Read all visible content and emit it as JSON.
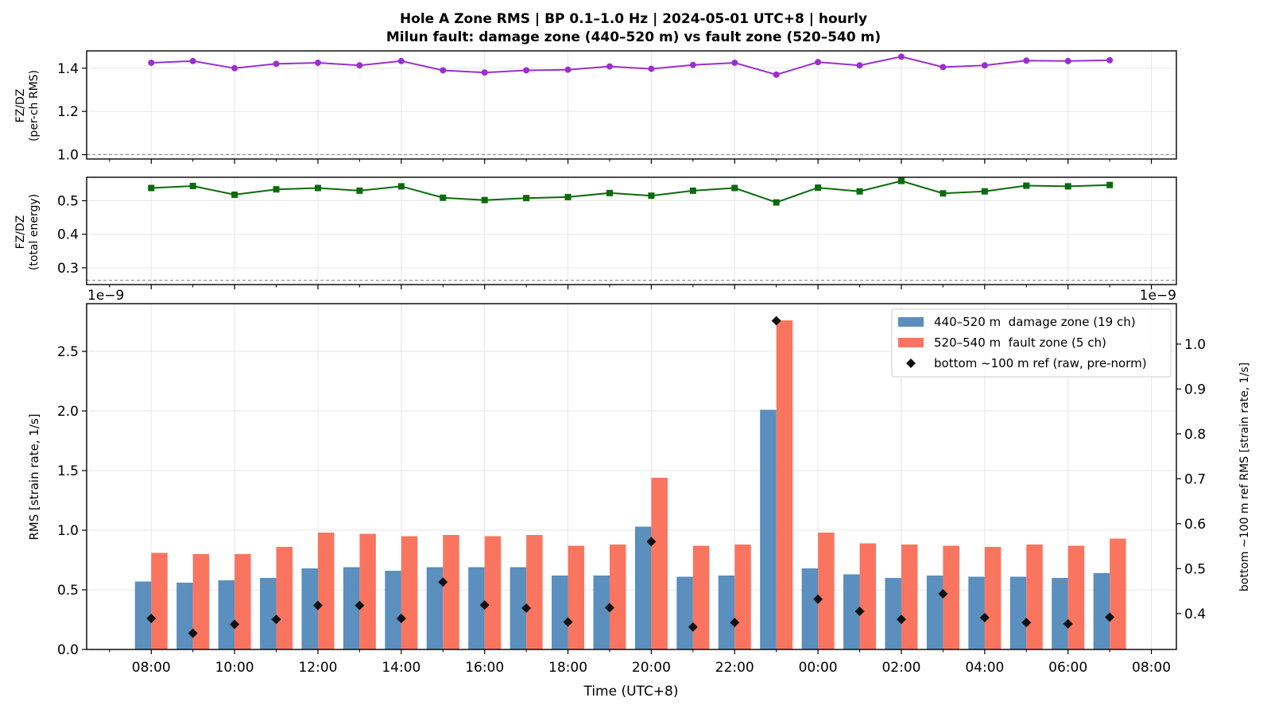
{
  "title_line1": "Hole A Zone RMS  |  BP 0.1–1.0 Hz  |  2024-05-01 UTC+8  |  hourly",
  "title_line2": "Milun fault: damage zone (440–520 m) vs fault zone (520–540 m)",
  "colors": {
    "damage": "#5a8fbe",
    "fault": "#fa7560",
    "ref": "#111111",
    "ratio_rms": "#9a2fd0",
    "ratio_energy": "#0b6b0b"
  },
  "chart_data": [
    {
      "type": "line",
      "panel": "top",
      "ylabel_line1": "FZ/DZ",
      "ylabel_line2": "(per-ch RMS)",
      "yticks": [
        "1.0",
        "1.2",
        "1.4"
      ],
      "ylim": [
        0.98,
        1.48
      ],
      "reference_line": 1.0,
      "x_hours": [
        8,
        9,
        10,
        11,
        12,
        13,
        14,
        15,
        16,
        17,
        18,
        19,
        20,
        21,
        22,
        23,
        24,
        25,
        26,
        27,
        28,
        29,
        30,
        31
      ],
      "values": [
        1.425,
        1.433,
        1.4,
        1.42,
        1.425,
        1.413,
        1.433,
        1.39,
        1.38,
        1.39,
        1.393,
        1.408,
        1.397,
        1.415,
        1.425,
        1.37,
        1.428,
        1.413,
        1.453,
        1.405,
        1.413,
        1.435,
        1.433,
        1.437
      ]
    },
    {
      "type": "line",
      "panel": "middle",
      "ylabel_line1": "FZ/DZ",
      "ylabel_line2": "(total energy)",
      "yticks": [
        "0.3",
        "0.4",
        "0.5"
      ],
      "ylim": [
        0.25,
        0.57
      ],
      "reference_line": 0.263,
      "x_hours": [
        8,
        9,
        10,
        11,
        12,
        13,
        14,
        15,
        16,
        17,
        18,
        19,
        20,
        21,
        22,
        23,
        24,
        25,
        26,
        27,
        28,
        29,
        30,
        31
      ],
      "values": [
        0.538,
        0.544,
        0.518,
        0.534,
        0.538,
        0.53,
        0.543,
        0.509,
        0.502,
        0.508,
        0.511,
        0.523,
        0.515,
        0.53,
        0.538,
        0.495,
        0.539,
        0.528,
        0.559,
        0.522,
        0.528,
        0.545,
        0.543,
        0.547
      ]
    },
    {
      "type": "bar",
      "panel": "bottom",
      "xlabel": "Time (UTC+8)",
      "ylabel": "RMS  [strain rate, 1/s]",
      "ylabel_right": "bottom ~100 m ref RMS  [strain rate, 1/s]",
      "scale_note_left": "1e−9",
      "scale_note_right": "1e−9",
      "ylim": [
        0,
        2.9
      ],
      "yticks": [
        "0.0",
        "0.5",
        "1.0",
        "1.5",
        "2.0",
        "2.5"
      ],
      "ylim_right": [
        0.32,
        1.09
      ],
      "yticks_right": [
        "0.4",
        "0.5",
        "0.6",
        "0.7",
        "0.8",
        "0.9",
        "1.0"
      ],
      "xticks": [
        "08:00",
        "10:00",
        "12:00",
        "14:00",
        "16:00",
        "18:00",
        "20:00",
        "22:00",
        "00:00",
        "02:00",
        "04:00",
        "06:00",
        "08:00"
      ],
      "xlim_hours": [
        6.45,
        32.6
      ],
      "x_hours": [
        8,
        9,
        10,
        11,
        12,
        13,
        14,
        15,
        16,
        17,
        18,
        19,
        20,
        21,
        22,
        23,
        24,
        25,
        26,
        27,
        28,
        29,
        30,
        31
      ],
      "series": [
        {
          "name": "440–520 m  damage zone (19 ch)",
          "values": [
            0.57,
            0.56,
            0.58,
            0.6,
            0.68,
            0.69,
            0.66,
            0.69,
            0.69,
            0.69,
            0.62,
            0.62,
            1.03,
            0.61,
            0.62,
            2.01,
            0.68,
            0.63,
            0.6,
            0.62,
            0.61,
            0.61,
            0.6,
            0.64
          ]
        },
        {
          "name": "520–540 m  fault zone (5 ch)",
          "values": [
            0.81,
            0.8,
            0.8,
            0.86,
            0.98,
            0.97,
            0.95,
            0.96,
            0.95,
            0.96,
            0.87,
            0.88,
            1.44,
            0.87,
            0.88,
            2.76,
            0.98,
            0.89,
            0.88,
            0.87,
            0.86,
            0.88,
            0.87,
            0.93
          ]
        },
        {
          "name": "bottom ~100 m ref (raw, pre-norm)",
          "axis": "right",
          "values": [
            0.389,
            0.356,
            0.376,
            0.387,
            0.418,
            0.418,
            0.389,
            0.47,
            0.419,
            0.412,
            0.381,
            0.413,
            0.56,
            0.37,
            0.38,
            1.052,
            0.432,
            0.405,
            0.387,
            0.444,
            0.391,
            0.38,
            0.377,
            0.392
          ]
        }
      ],
      "legend": "top-right",
      "grid": true
    }
  ]
}
